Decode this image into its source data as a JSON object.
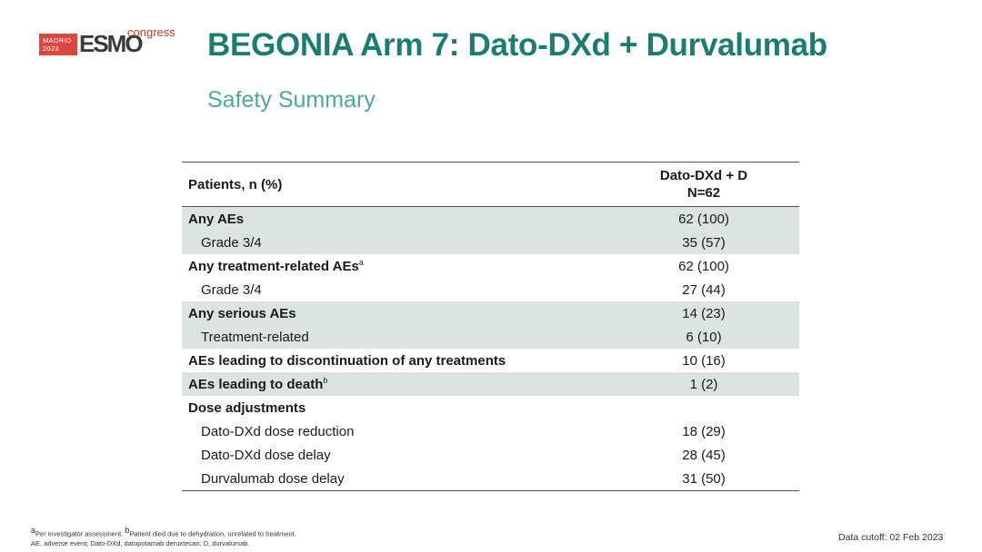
{
  "logo": {
    "city": "MADRID",
    "year": "2023",
    "brand": "ESMO",
    "suffix": "congress"
  },
  "title": "BEGONIA Arm 7: Dato-DXd + Durvalumab",
  "subtitle": "Safety Summary",
  "table": {
    "header": {
      "col1": "Patients, n (%)",
      "col2_line1": "Dato-DXd + D",
      "col2_line2": "N=62"
    },
    "rows": [
      {
        "label": "Any AEs",
        "value": "62 (100)",
        "sup": ""
      },
      {
        "label": "Grade 3/4",
        "value": "35 (57)",
        "sup": ""
      },
      {
        "label": "Any treatment-related AEs",
        "value": "62 (100)",
        "sup": "a"
      },
      {
        "label": "Grade 3/4",
        "value": "27 (44)",
        "sup": ""
      },
      {
        "label": "Any serious AEs",
        "value": "14 (23)",
        "sup": ""
      },
      {
        "label": "Treatment-related",
        "value": "6 (10)",
        "sup": ""
      },
      {
        "label": "AEs leading to discontinuation of any treatments",
        "value": "10 (16)",
        "sup": ""
      },
      {
        "label": "AEs leading to death",
        "value": "1 (2)",
        "sup": "b"
      },
      {
        "label": "Dose adjustments",
        "value": "",
        "sup": ""
      },
      {
        "label": "Dato-DXd dose reduction",
        "value": "18 (29)",
        "sup": ""
      },
      {
        "label": "Dato-DXd dose delay",
        "value": "28 (45)",
        "sup": ""
      },
      {
        "label": "Durvalumab dose delay",
        "value": "31 (50)",
        "sup": ""
      }
    ]
  },
  "footnotes": {
    "sup_a": "a",
    "line1a": "Per investigator assessment. ",
    "sup_b": "b",
    "line1b": "Patient died due to dehydration, unrelated to treatment.",
    "line2": "AE, adverse event; Dato-DXd, datopotamab deruxtecan; D, durvalumab."
  },
  "cutoff": "Data cutoff: 02 Feb 2023"
}
